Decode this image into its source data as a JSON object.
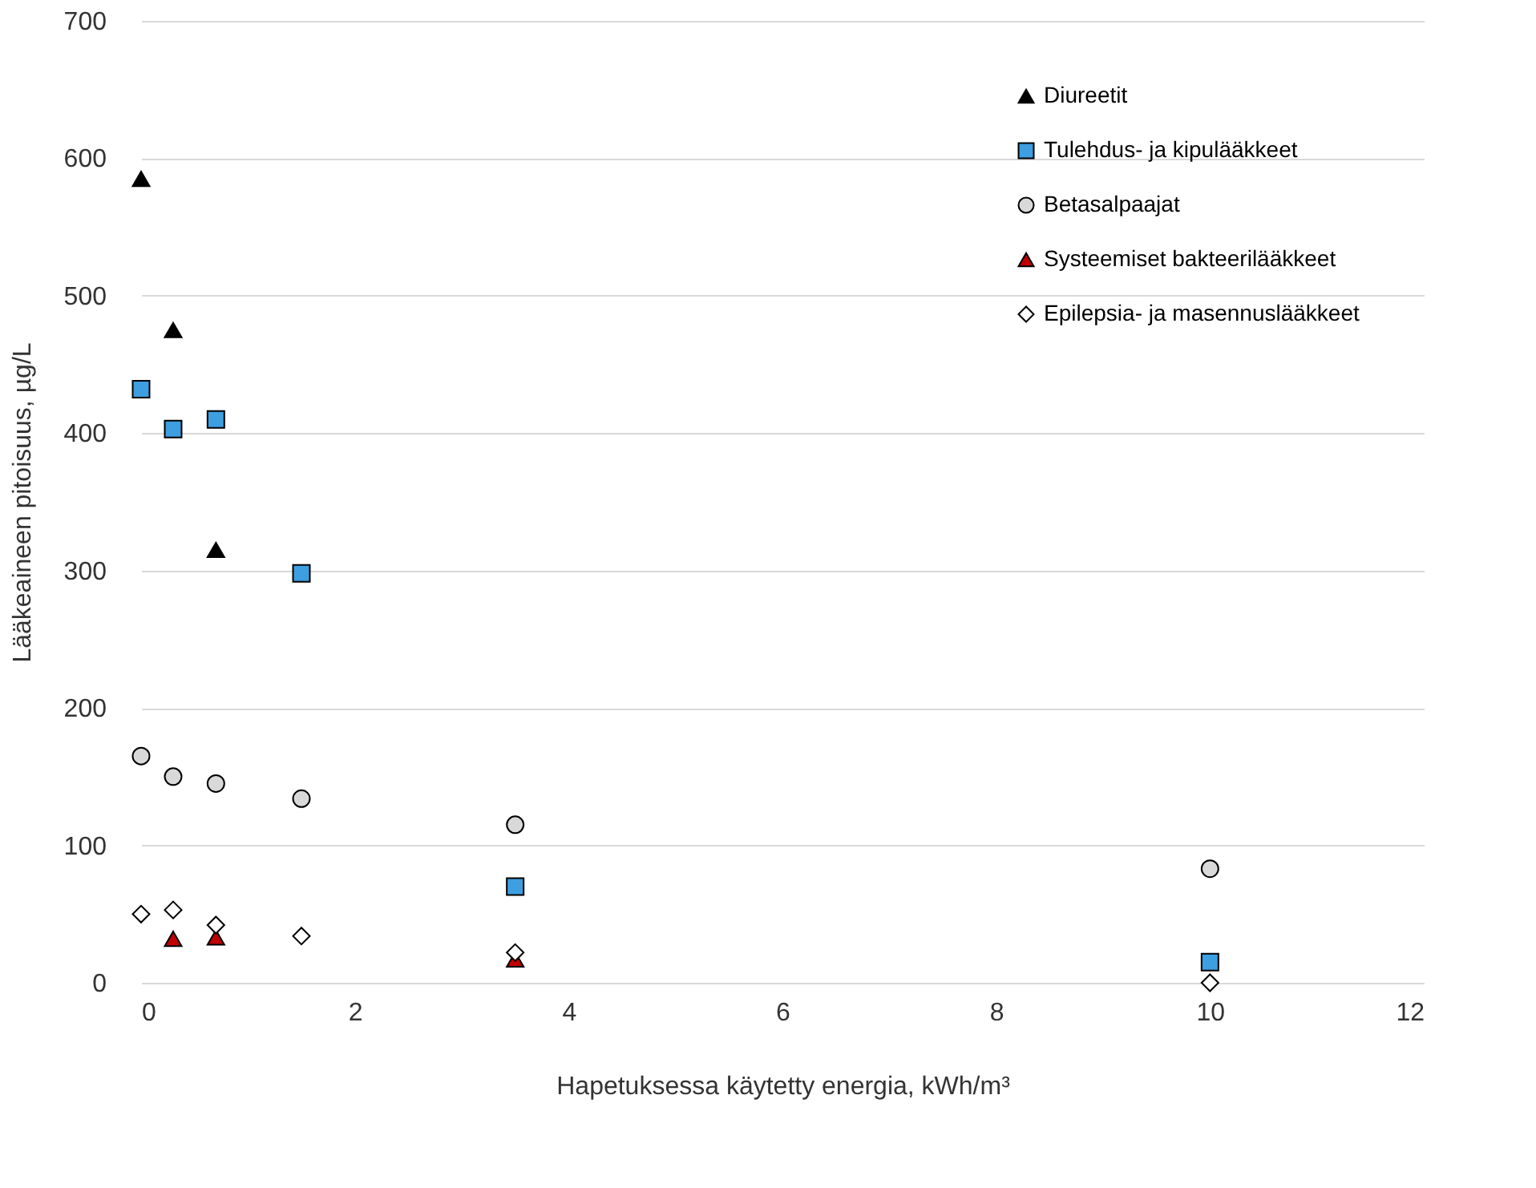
{
  "chart_data": {
    "type": "scatter",
    "xlabel": "Hapetuksessa käytetty energia, kWh/m³",
    "ylabel": "Lääkeaineen pitoisuus, µg/L",
    "xlim": [
      0,
      12
    ],
    "xticks": [
      0,
      2,
      4,
      6,
      8,
      10,
      12
    ],
    "ylim": [
      0,
      700
    ],
    "yticks": [
      0,
      100,
      200,
      300,
      400,
      500,
      600,
      700
    ],
    "grid": "y",
    "legend": "top right",
    "series": [
      {
        "name": "Diureetit",
        "color": "#000000",
        "marker": "triangle",
        "x": [
          0,
          0.3,
          0.7
        ],
        "values": [
          585,
          475,
          315
        ]
      },
      {
        "name": "Tulehdus- ja kipulääkkeet",
        "color": "#3d9ee0",
        "marker": "square",
        "x": [
          0,
          0.3,
          0.7,
          1.5,
          3.5,
          10
        ],
        "values": [
          432,
          403,
          410,
          298,
          70,
          15
        ]
      },
      {
        "name": "Betasalpaajat",
        "color": "#d9d9d9",
        "marker": "circle",
        "x": [
          0,
          0.3,
          0.7,
          1.5,
          3.5,
          10
        ],
        "values": [
          165,
          150,
          145,
          134,
          115,
          83
        ]
      },
      {
        "name": "Systeemiset bakteerilääkkeet",
        "color": "#c00000",
        "marker": "triangle",
        "x": [
          0.3,
          0.7,
          3.5
        ],
        "values": [
          32,
          33,
          17
        ]
      },
      {
        "name": "Epilepsia- ja masennuslääkkeet",
        "color": "#ffffff",
        "marker": "diamond",
        "x": [
          0,
          0.3,
          0.7,
          1.5,
          3.5,
          10
        ],
        "values": [
          50,
          53,
          42,
          34,
          22,
          0
        ]
      }
    ]
  }
}
